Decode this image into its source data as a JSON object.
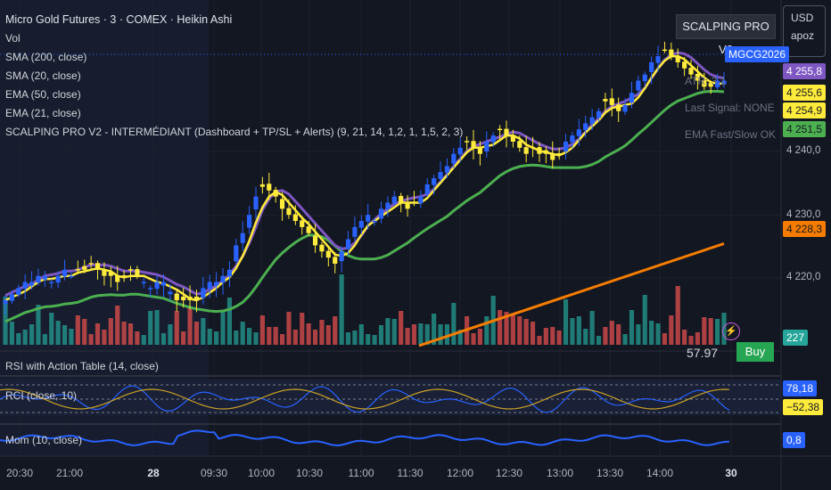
{
  "legend": {
    "title": "Micro Gold Futures · 3 · COMEX · Heikin Ashi",
    "lines": [
      "Vol",
      "SMA (200, close)",
      "SMA (20, close)",
      "EMA (50, close)",
      "EMA (21, close)",
      "SCALPING PRO V2 - INTERMÉDIANT (Dashboard + TP/SL + Alerts) (9, 21, 14, 1,2, 1, 1,5, 2, 3)"
    ]
  },
  "dashboard": {
    "title": "SCALPING PRO V2",
    "atr": "ATR: 3.1",
    "last_signal": "Last Signal: NONE",
    "ema_status": "EMA Fast/Slow OK"
  },
  "currency_box": {
    "currency": "USD",
    "mode": "apoz"
  },
  "symbol_badge": "MGCG2026",
  "price_badges": [
    {
      "text": "4 255,8",
      "bg": "#7e57c2",
      "color": "#ffffff"
    },
    {
      "text": "4 255,6",
      "bg": "#ffeb3b",
      "color": "#131722"
    },
    {
      "text": "4 254,9",
      "bg": "#ffeb3b",
      "color": "#131722"
    },
    {
      "text": "4 251,5",
      "bg": "#4caf50",
      "color": "#131722"
    },
    {
      "text": "4 228,3",
      "bg": "#f57c00",
      "color": "#131722"
    },
    {
      "text": "227",
      "bg": "#26a69a",
      "color": "#ffffff"
    }
  ],
  "y_ticks": [
    "4 240,0",
    "4 230,0",
    "4 220,0"
  ],
  "panes": {
    "rsi": {
      "label": "RSI with Action Table (14, close)",
      "value": "57.97",
      "action": "Buy"
    },
    "rci": {
      "label": "RCI (close, 10)",
      "value_upper": "78,18",
      "value_lower": "−52,38"
    },
    "mom": {
      "label": "Mom (10, close)",
      "value": "0,8"
    }
  },
  "x_labels": [
    {
      "text": "20:30",
      "bold": false
    },
    {
      "text": "21:00",
      "bold": false
    },
    {
      "text": "28",
      "bold": true
    },
    {
      "text": "09:30",
      "bold": false
    },
    {
      "text": "10:00",
      "bold": false
    },
    {
      "text": "10:30",
      "bold": false
    },
    {
      "text": "11:00",
      "bold": false
    },
    {
      "text": "11:30",
      "bold": false
    },
    {
      "text": "12:00",
      "bold": false
    },
    {
      "text": "12:30",
      "bold": false
    },
    {
      "text": "13:00",
      "bold": false
    },
    {
      "text": "13:30",
      "bold": false
    },
    {
      "text": "14:00",
      "bold": false
    },
    {
      "text": "30",
      "bold": true
    }
  ],
  "colors": {
    "bull": "#2962ff",
    "bear": "#ffeb3b",
    "sma200": "#f57c00",
    "sma20": "#ffeb3b",
    "ema50": "#4caf50",
    "ema21": "#7e57c2",
    "vol_up": "#26a69a",
    "vol_down": "#ef5350",
    "rci": "#2962ff",
    "rci_sig": "#c9a227",
    "mom": "#2962ff"
  },
  "chart_data": {
    "type": "candlestick",
    "title": "Micro Gold Futures · 3 · COMEX · Heikin Ashi",
    "ylim": [
      4212,
      4265
    ],
    "close_series": [
      4219,
      4220,
      4221,
      4222,
      4222,
      4223,
      4223,
      4222,
      4223,
      4224,
      4223,
      4224,
      4224,
      4225,
      4224,
      4223,
      4223,
      4222,
      4223,
      4224,
      4223,
      4222,
      4221,
      4222,
      4222,
      4220,
      4219,
      4219,
      4219,
      4219,
      4221,
      4222,
      4222,
      4223,
      4224,
      4228,
      4230,
      4233,
      4236,
      4238,
      4237,
      4236,
      4234,
      4233,
      4232,
      4231,
      4230,
      4228,
      4227,
      4226,
      4225,
      4227,
      4229,
      4231,
      4232,
      4233,
      4232,
      4234,
      4235,
      4236,
      4235,
      4234,
      4235,
      4236,
      4238,
      4239,
      4240,
      4241,
      4243,
      4244,
      4245,
      4244,
      4243,
      4245,
      4246,
      4247,
      4246,
      4245,
      4244,
      4243,
      4244,
      4243,
      4243,
      4242,
      4243,
      4245,
      4246,
      4247,
      4248,
      4249,
      4250,
      4252,
      4251,
      4250,
      4251,
      4253,
      4255,
      4256,
      4258,
      4259,
      4260,
      4259,
      4258,
      4257,
      4256,
      4255,
      4254,
      4254,
      4255,
      4255
    ],
    "bear_index_ranges": [
      [
        11,
        20
      ],
      [
        26,
        29
      ],
      [
        39,
        50
      ],
      [
        60,
        62
      ],
      [
        70,
        72
      ],
      [
        75,
        84
      ],
      [
        91,
        93
      ],
      [
        100,
        107
      ]
    ],
    "volume_level": 227,
    "indicators": {
      "rsi": 57.97,
      "rci": 78.18,
      "rci_signal": -52.38,
      "momentum": 0.8,
      "atr": 3.1
    },
    "series_last": {
      "sma200": 4228.3,
      "sma20": 4255.6,
      "ema50": 4251.5,
      "ema21": 4255.8
    }
  }
}
